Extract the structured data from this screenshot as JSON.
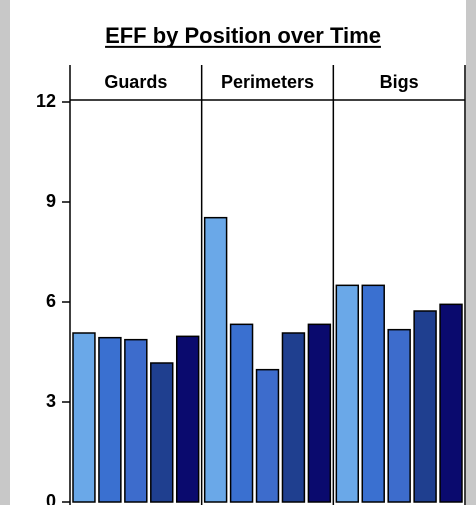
{
  "chart_data": {
    "type": "bar",
    "title": "EFF by Position over Time",
    "categories": [
      "Guards",
      "Perimeters",
      "Bigs"
    ],
    "series": [
      {
        "color": "#6aa8e8",
        "values": [
          5.07,
          8.53,
          6.5
        ]
      },
      {
        "color": "#3a70d0",
        "values": [
          4.93,
          5.33,
          6.5
        ]
      },
      {
        "color": "#3d6ccc",
        "values": [
          4.87,
          3.97,
          5.17
        ]
      },
      {
        "color": "#1f3f8f",
        "values": [
          4.17,
          5.07,
          5.73
        ]
      },
      {
        "color": "#0a0a6e",
        "values": [
          4.97,
          5.33,
          5.93
        ]
      }
    ],
    "ylim": [
      0,
      12
    ],
    "yticks": [
      0,
      3,
      6,
      9,
      12
    ]
  }
}
